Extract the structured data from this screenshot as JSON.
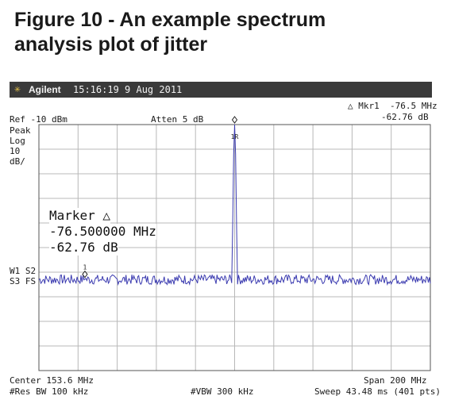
{
  "figure": {
    "title_line1": "Figure 10 - An example spectrum",
    "title_line2": "analysis plot of jitter"
  },
  "header": {
    "brand": "Agilent",
    "timestamp": "15:16:19  9 Aug 2011",
    "brand_icon": "agilent-spark-icon"
  },
  "settings": {
    "ref": "Ref -10 dBm",
    "atten": "Atten 5 dB",
    "marker_readout_line1": "△ Mkr1  -76.5 MHz",
    "marker_readout_line2": "-62.76 dB",
    "scale_line1": "Peak",
    "scale_line2": "Log",
    "scale_line3": "10",
    "scale_line4": "dB/",
    "trace_line1": "W1 S2",
    "trace_line2": "S3 FS",
    "center": "Center 153.6 MHz",
    "span": "Span 200 MHz",
    "res_bw": "#Res BW 100 kHz",
    "vbw": "#VBW 300 kHz",
    "sweep": "Sweep 43.48 ms (401 pts)"
  },
  "marker_box": {
    "line1": "Marker △",
    "line2": "-76.500000 MHz",
    "line3": "-62.76 dB"
  },
  "chart_data": {
    "type": "line",
    "x_unit": "MHz",
    "y_unit": "dBm",
    "xlim": [
      53.6,
      253.6
    ],
    "ylim": [
      -110,
      -10
    ],
    "grid": true,
    "points": 401,
    "noise_floor_dbm": -73,
    "noise_ripple_db": 2,
    "peaks": [
      {
        "x": 153.6,
        "y": -10,
        "label": "1R"
      },
      {
        "x": 77.1,
        "y": -72.8,
        "label": "1"
      }
    ],
    "colors": {
      "trace": "#3b3bb0",
      "grid": "#b8b8b8",
      "frame": "#555555"
    }
  }
}
